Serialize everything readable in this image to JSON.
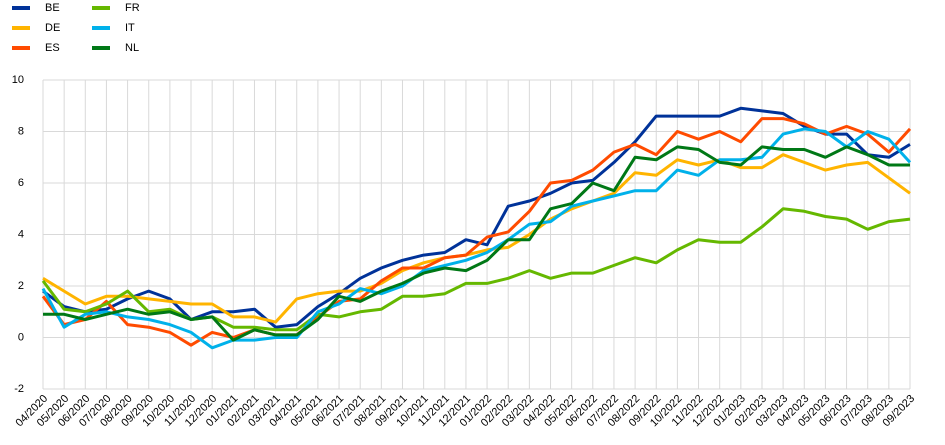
{
  "chart_data": {
    "type": "line",
    "categories": [
      "04/2020",
      "05/2020",
      "06/2020",
      "07/2020",
      "08/2020",
      "09/2020",
      "10/2020",
      "11/2020",
      "12/2020",
      "01/2021",
      "02/2021",
      "03/2021",
      "04/2021",
      "05/2021",
      "06/2021",
      "07/2021",
      "08/2021",
      "09/2021",
      "10/2021",
      "11/2021",
      "12/2021",
      "01/2022",
      "02/2022",
      "03/2022",
      "04/2022",
      "05/2022",
      "06/2022",
      "07/2022",
      "08/2022",
      "09/2022",
      "10/2022",
      "11/2022",
      "12/2022",
      "01/2023",
      "02/2023",
      "03/2023",
      "04/2023",
      "05/2023",
      "06/2023",
      "07/2023",
      "08/2023",
      "09/2023"
    ],
    "series": [
      {
        "name": "BE",
        "color": "#003299",
        "values": [
          1.8,
          1.2,
          1.0,
          1.1,
          1.5,
          1.8,
          1.5,
          0.7,
          1.0,
          1.0,
          1.1,
          0.4,
          0.5,
          1.2,
          1.7,
          2.3,
          2.7,
          3.0,
          3.2,
          3.3,
          3.8,
          3.6,
          5.1,
          5.3,
          5.6,
          6.0,
          6.1,
          6.8,
          7.6,
          8.6,
          8.6,
          8.6,
          8.6,
          8.9,
          8.8,
          8.7,
          8.2,
          7.9,
          7.9,
          7.1,
          7.0,
          7.5
        ]
      },
      {
        "name": "DE",
        "color": "#ffb400",
        "values": [
          2.3,
          1.8,
          1.3,
          1.6,
          1.6,
          1.5,
          1.4,
          1.3,
          1.3,
          0.8,
          0.8,
          0.6,
          1.5,
          1.7,
          1.8,
          1.8,
          2.1,
          2.6,
          2.9,
          3.1,
          3.2,
          3.4,
          3.5,
          4.0,
          4.6,
          5.0,
          5.3,
          5.6,
          6.4,
          6.3,
          6.9,
          6.7,
          6.9,
          6.6,
          6.6,
          7.1,
          6.8,
          6.5,
          6.7,
          6.8,
          6.2,
          5.6
        ]
      },
      {
        "name": "ES",
        "color": "#ff4b00",
        "values": [
          1.6,
          0.5,
          0.7,
          1.4,
          0.5,
          0.4,
          0.2,
          -0.3,
          0.2,
          0.0,
          0.3,
          0.1,
          0.1,
          0.8,
          1.4,
          1.5,
          2.2,
          2.7,
          2.7,
          3.1,
          3.2,
          3.9,
          4.1,
          4.9,
          6.0,
          6.1,
          6.5,
          7.2,
          7.5,
          7.1,
          8.0,
          7.7,
          8.0,
          7.6,
          8.5,
          8.5,
          8.3,
          7.9,
          8.2,
          7.9,
          7.2,
          8.1
        ]
      },
      {
        "name": "FR",
        "color": "#65b800",
        "values": [
          2.2,
          1.1,
          1.0,
          1.3,
          1.8,
          1.0,
          1.1,
          0.7,
          0.8,
          0.4,
          0.4,
          0.3,
          0.3,
          0.9,
          0.8,
          1.0,
          1.1,
          1.6,
          1.6,
          1.7,
          2.1,
          2.1,
          2.3,
          2.6,
          2.3,
          2.5,
          2.5,
          2.8,
          3.1,
          2.9,
          3.4,
          3.8,
          3.7,
          3.7,
          4.3,
          5.0,
          4.9,
          4.7,
          4.6,
          4.2,
          4.5,
          4.6
        ]
      },
      {
        "name": "IT",
        "color": "#00b1ea",
        "values": [
          1.9,
          0.4,
          0.9,
          1.0,
          0.8,
          0.7,
          0.5,
          0.2,
          -0.4,
          -0.1,
          -0.1,
          0.0,
          0.0,
          1.0,
          1.3,
          1.9,
          1.7,
          2.0,
          2.6,
          2.8,
          3.0,
          3.3,
          3.8,
          4.4,
          4.5,
          5.1,
          5.3,
          5.5,
          5.7,
          5.7,
          6.5,
          6.3,
          6.9,
          6.9,
          7.0,
          7.9,
          8.1,
          8.0,
          7.4,
          8.0,
          7.7,
          6.8
        ]
      },
      {
        "name": "NL",
        "color": "#007816",
        "values": [
          0.9,
          0.9,
          0.7,
          0.9,
          1.1,
          0.9,
          1.0,
          0.7,
          0.8,
          -0.1,
          0.3,
          0.1,
          0.1,
          0.7,
          1.6,
          1.4,
          1.8,
          2.1,
          2.5,
          2.7,
          2.6,
          3.0,
          3.8,
          3.8,
          5.0,
          5.2,
          6.0,
          5.7,
          7.0,
          6.9,
          7.4,
          7.3,
          6.8,
          6.7,
          7.4,
          7.3,
          7.3,
          7.0,
          7.4,
          7.1,
          6.7,
          6.7
        ]
      }
    ],
    "ylim": [
      -2,
      10
    ],
    "yticks": [
      -2,
      0,
      2,
      4,
      6,
      8,
      10
    ],
    "grid": true
  }
}
